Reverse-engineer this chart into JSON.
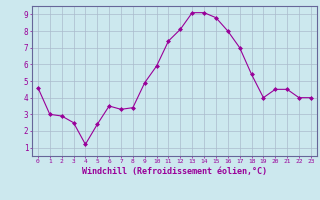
{
  "x": [
    0,
    1,
    2,
    3,
    4,
    5,
    6,
    7,
    8,
    9,
    10,
    11,
    12,
    13,
    14,
    15,
    16,
    17,
    18,
    19,
    20,
    21,
    22,
    23
  ],
  "y": [
    4.6,
    3.0,
    2.9,
    2.5,
    1.2,
    2.4,
    3.5,
    3.3,
    3.4,
    4.9,
    5.9,
    7.4,
    8.1,
    9.1,
    9.1,
    8.8,
    8.0,
    7.0,
    5.4,
    4.0,
    4.5,
    4.5,
    4.0,
    4.0
  ],
  "line_color": "#990099",
  "marker": "D",
  "marker_size": 2,
  "bg_color": "#cce8ee",
  "grid_color": "#aabbcc",
  "xlabel": "Windchill (Refroidissement éolien,°C)",
  "xlabel_color": "#990099",
  "tick_color": "#990099",
  "spine_color": "#666699",
  "xlim": [
    -0.5,
    23.5
  ],
  "ylim": [
    0.5,
    9.5
  ],
  "yticks": [
    1,
    2,
    3,
    4,
    5,
    6,
    7,
    8,
    9
  ],
  "xticks": [
    0,
    1,
    2,
    3,
    4,
    5,
    6,
    7,
    8,
    9,
    10,
    11,
    12,
    13,
    14,
    15,
    16,
    17,
    18,
    19,
    20,
    21,
    22,
    23
  ],
  "figsize": [
    3.2,
    2.0
  ],
  "dpi": 100,
  "font_size_x": 4.5,
  "font_size_y": 5.5,
  "xlabel_fontsize": 6.0
}
